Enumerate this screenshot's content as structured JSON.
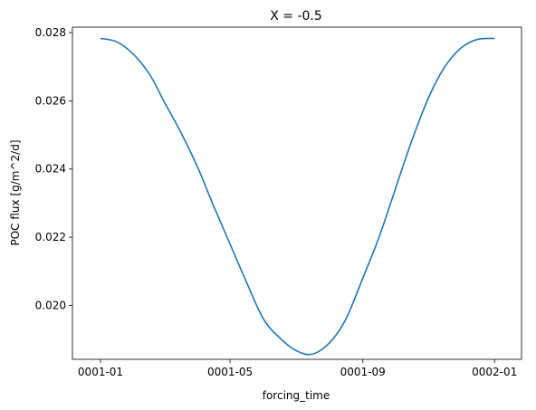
{
  "chart_data": {
    "type": "line",
    "title": "X = -0.5",
    "xlabel": "forcing_time",
    "ylabel": "POC flux [g/m^2/d]",
    "xlim": [
      "0000-12-06",
      "0002-01-26"
    ],
    "ylim": [
      0.01842,
      0.02816
    ],
    "x_ticks": [
      {
        "value": "0001-01-01",
        "label": "0001-01"
      },
      {
        "value": "0001-05-01",
        "label": "0001-05"
      },
      {
        "value": "0001-09-01",
        "label": "0001-09"
      },
      {
        "value": "0002-01-01",
        "label": "0002-01"
      }
    ],
    "y_ticks": [
      {
        "value": 0.02,
        "label": "0.020"
      },
      {
        "value": 0.022,
        "label": "0.022"
      },
      {
        "value": 0.024,
        "label": "0.024"
      },
      {
        "value": 0.026,
        "label": "0.026"
      },
      {
        "value": 0.028,
        "label": "0.028"
      }
    ],
    "grid": false,
    "series": [
      {
        "color": "#1f77b4",
        "x": [
          "0001-01-01",
          "0001-01-16",
          "0001-02-01",
          "0001-02-16",
          "0001-03-01",
          "0001-03-16",
          "0001-04-01",
          "0001-04-16",
          "0001-05-01",
          "0001-05-16",
          "0001-06-01",
          "0001-06-16",
          "0001-07-01",
          "0001-07-16",
          "0001-08-01",
          "0001-08-16",
          "0001-09-01",
          "0001-09-16",
          "0001-10-01",
          "0001-10-16",
          "0001-11-01",
          "0001-11-16",
          "0001-12-01",
          "0001-12-16",
          "0002-01-01"
        ],
        "y": [
          0.02783,
          0.02773,
          0.02735,
          0.02675,
          0.02597,
          0.0251,
          0.02405,
          0.0229,
          0.0218,
          0.0207,
          0.0196,
          0.01905,
          0.01868,
          0.01857,
          0.0189,
          0.01958,
          0.0208,
          0.022,
          0.0234,
          0.0248,
          0.0261,
          0.027,
          0.02755,
          0.0278,
          0.02783
        ]
      }
    ]
  }
}
